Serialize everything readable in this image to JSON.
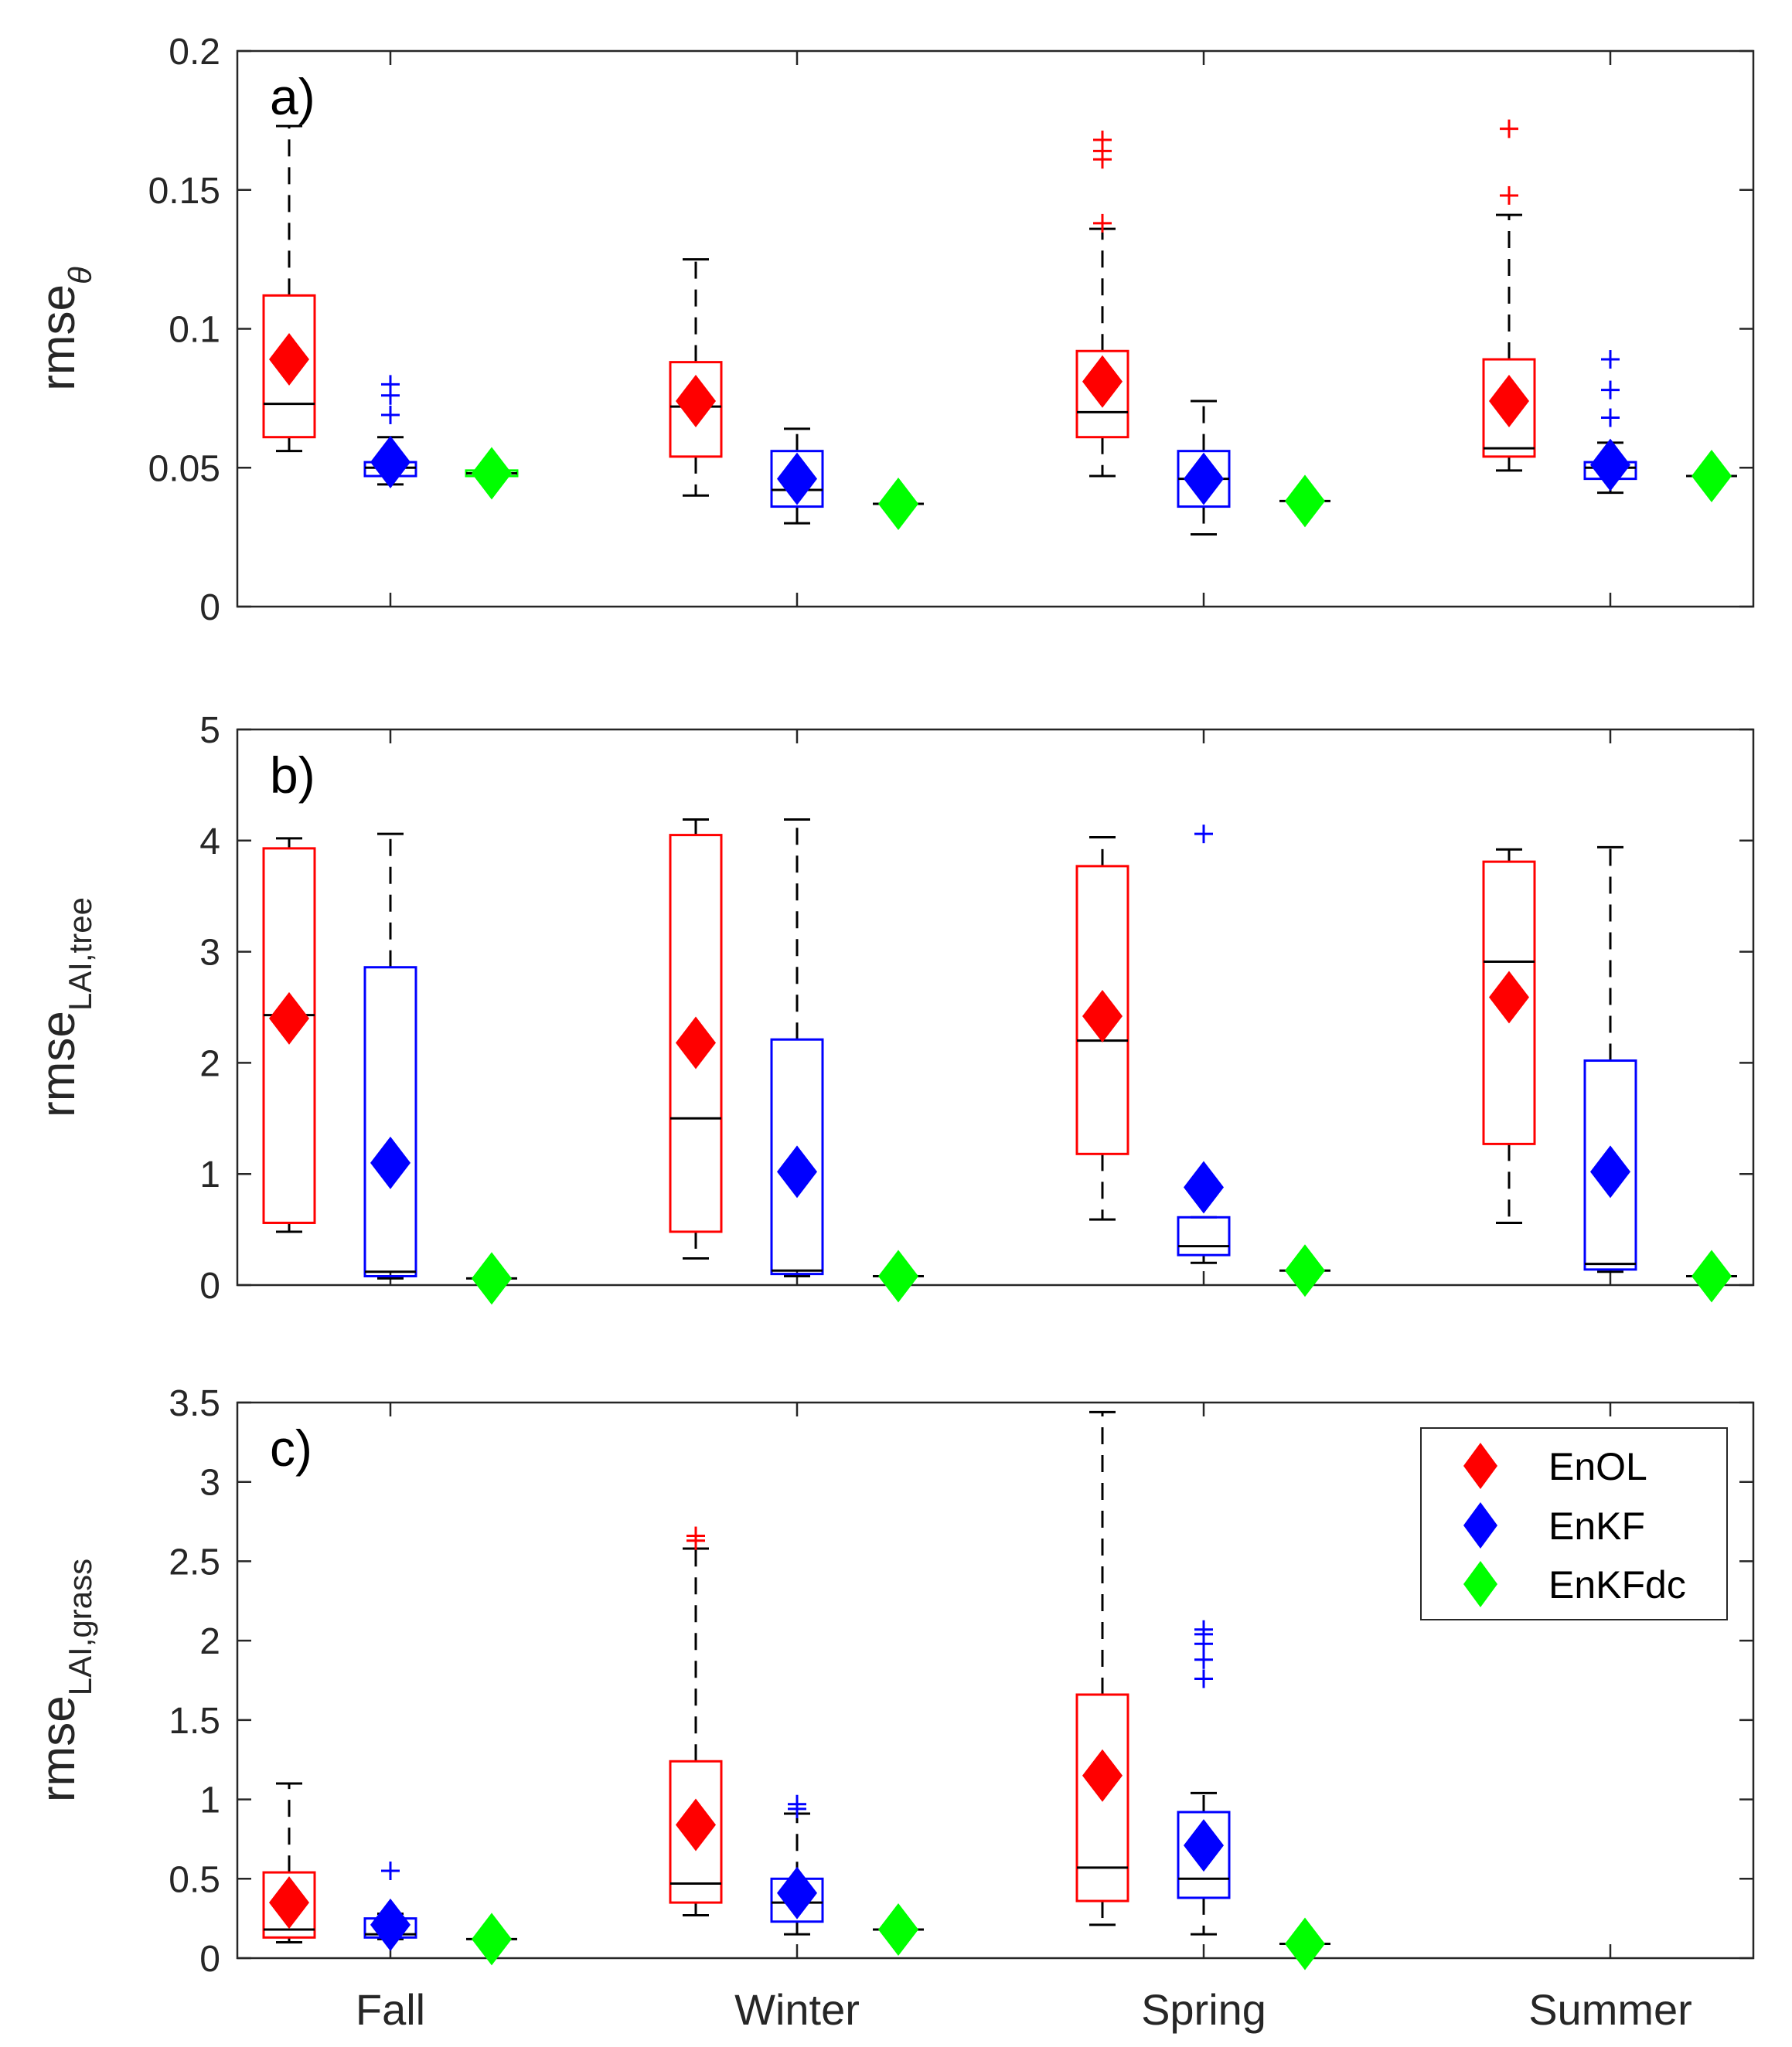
{
  "chart_data": [
    {
      "type": "box",
      "panel_label": "a)",
      "ylabel": {
        "main": "rmse",
        "sub": "θ"
      },
      "ylim": [
        0,
        0.2
      ],
      "yticks": [
        "0",
        "0.05",
        "0.1",
        "0.15",
        "0.2"
      ],
      "categories": [
        "Fall",
        "Winter",
        "Spring",
        "Summer"
      ],
      "series_names": [
        "EnOL",
        "EnKF",
        "EnKFdc"
      ],
      "boxes": [
        [
          {
            "series": "EnOL",
            "lw": 0.056,
            "q1": 0.061,
            "median": 0.073,
            "q3": 0.112,
            "uw": 0.173,
            "mean": 0.089,
            "outliers": []
          },
          {
            "series": "EnKF",
            "lw": 0.044,
            "q1": 0.047,
            "median": 0.05,
            "q3": 0.052,
            "uw": 0.061,
            "mean": 0.052,
            "outliers": [
              0.069,
              0.076,
              0.08
            ]
          },
          {
            "series": "EnKFdc",
            "lw": 0.046,
            "q1": 0.047,
            "median": 0.048,
            "q3": 0.049,
            "uw": 0.05,
            "mean": 0.048,
            "outliers": []
          }
        ],
        [
          {
            "series": "EnOL",
            "lw": 0.04,
            "q1": 0.054,
            "median": 0.072,
            "q3": 0.088,
            "uw": 0.125,
            "mean": 0.074,
            "outliers": []
          },
          {
            "series": "EnKF",
            "lw": 0.03,
            "q1": 0.036,
            "median": 0.042,
            "q3": 0.056,
            "uw": 0.064,
            "mean": 0.046,
            "outliers": []
          },
          {
            "series": "EnKFdc",
            "lw": 0.037,
            "q1": 0.037,
            "median": 0.037,
            "q3": 0.037,
            "uw": 0.037,
            "mean": 0.037,
            "outliers": []
          }
        ],
        [
          {
            "series": "EnOL",
            "lw": 0.047,
            "q1": 0.061,
            "median": 0.07,
            "q3": 0.092,
            "uw": 0.136,
            "mean": 0.081,
            "outliers": [
              0.138,
              0.161,
              0.164,
              0.168
            ]
          },
          {
            "series": "EnKF",
            "lw": 0.026,
            "q1": 0.036,
            "median": 0.046,
            "q3": 0.056,
            "uw": 0.074,
            "mean": 0.046,
            "outliers": []
          },
          {
            "series": "EnKFdc",
            "lw": 0.038,
            "q1": 0.038,
            "median": 0.038,
            "q3": 0.038,
            "uw": 0.038,
            "mean": 0.038,
            "outliers": []
          }
        ],
        [
          {
            "series": "EnOL",
            "lw": 0.049,
            "q1": 0.054,
            "median": 0.057,
            "q3": 0.089,
            "uw": 0.141,
            "mean": 0.074,
            "outliers": [
              0.148,
              0.172
            ]
          },
          {
            "series": "EnKF",
            "lw": 0.041,
            "q1": 0.046,
            "median": 0.05,
            "q3": 0.052,
            "uw": 0.059,
            "mean": 0.051,
            "outliers": [
              0.068,
              0.078,
              0.089
            ]
          },
          {
            "series": "EnKFdc",
            "lw": 0.047,
            "q1": 0.047,
            "median": 0.047,
            "q3": 0.047,
            "uw": 0.047,
            "mean": 0.047,
            "outliers": []
          }
        ]
      ]
    },
    {
      "type": "box",
      "panel_label": "b)",
      "ylabel": {
        "main": "rmse",
        "sub": "LAI,tree"
      },
      "ylim": [
        0,
        5
      ],
      "yticks": [
        "0",
        "1",
        "2",
        "3",
        "4",
        "5"
      ],
      "categories": [
        "Fall",
        "Winter",
        "Spring",
        "Summer"
      ],
      "series_names": [
        "EnOL",
        "EnKF",
        "EnKFdc"
      ],
      "boxes": [
        [
          {
            "series": "EnOL",
            "lw": 0.48,
            "q1": 0.56,
            "median": 2.43,
            "q3": 3.93,
            "uw": 4.02,
            "mean": 2.4,
            "outliers": []
          },
          {
            "series": "EnKF",
            "lw": 0.06,
            "q1": 0.08,
            "median": 0.12,
            "q3": 2.86,
            "uw": 4.06,
            "mean": 1.1,
            "outliers": []
          },
          {
            "series": "EnKFdc",
            "lw": 0.06,
            "q1": 0.06,
            "median": 0.06,
            "q3": 0.06,
            "uw": 0.06,
            "mean": 0.06,
            "outliers": []
          }
        ],
        [
          {
            "series": "EnOL",
            "lw": 0.24,
            "q1": 0.48,
            "median": 1.5,
            "q3": 4.05,
            "uw": 4.19,
            "mean": 2.18,
            "outliers": []
          },
          {
            "series": "EnKF",
            "lw": 0.08,
            "q1": 0.1,
            "median": 0.13,
            "q3": 2.21,
            "uw": 4.19,
            "mean": 1.02,
            "outliers": []
          },
          {
            "series": "EnKFdc",
            "lw": 0.08,
            "q1": 0.08,
            "median": 0.08,
            "q3": 0.08,
            "uw": 0.08,
            "mean": 0.08,
            "outliers": []
          }
        ],
        [
          {
            "series": "EnOL",
            "lw": 0.59,
            "q1": 1.18,
            "median": 2.2,
            "q3": 3.77,
            "uw": 4.03,
            "mean": 2.42,
            "outliers": []
          },
          {
            "series": "EnKF",
            "lw": 0.2,
            "q1": 0.27,
            "median": 0.35,
            "q3": 0.61,
            "uw": 0.61,
            "mean": 0.88,
            "outliers": [
              4.06
            ]
          },
          {
            "series": "EnKFdc",
            "lw": 0.13,
            "q1": 0.13,
            "median": 0.13,
            "q3": 0.13,
            "uw": 0.13,
            "mean": 0.13,
            "outliers": []
          }
        ],
        [
          {
            "series": "EnOL",
            "lw": 0.56,
            "q1": 1.27,
            "median": 2.91,
            "q3": 3.81,
            "uw": 3.92,
            "mean": 2.59,
            "outliers": []
          },
          {
            "series": "EnKF",
            "lw": 0.12,
            "q1": 0.14,
            "median": 0.19,
            "q3": 2.02,
            "uw": 3.94,
            "mean": 1.02,
            "outliers": []
          },
          {
            "series": "EnKFdc",
            "lw": 0.08,
            "q1": 0.08,
            "median": 0.08,
            "q3": 0.08,
            "uw": 0.08,
            "mean": 0.08,
            "outliers": []
          }
        ]
      ]
    },
    {
      "type": "box",
      "panel_label": "c)",
      "ylabel": {
        "main": "rmse",
        "sub": "LAI,grass"
      },
      "ylim": [
        0,
        3.5
      ],
      "yticks": [
        "0",
        "0.5",
        "1",
        "1.5",
        "2",
        "2.5",
        "3",
        "3.5"
      ],
      "categories": [
        "Fall",
        "Winter",
        "Spring",
        "Summer"
      ],
      "series_names": [
        "EnOL",
        "EnKF",
        "EnKFdc"
      ],
      "boxes": [
        [
          {
            "series": "EnOL",
            "lw": 0.1,
            "q1": 0.13,
            "median": 0.18,
            "q3": 0.54,
            "uw": 1.1,
            "mean": 0.35,
            "outliers": []
          },
          {
            "series": "EnKF",
            "lw": 0.12,
            "q1": 0.13,
            "median": 0.15,
            "q3": 0.25,
            "uw": 0.28,
            "mean": 0.21,
            "outliers": [
              0.55
            ]
          },
          {
            "series": "EnKFdc",
            "lw": 0.12,
            "q1": 0.12,
            "median": 0.12,
            "q3": 0.12,
            "uw": 0.12,
            "mean": 0.12,
            "outliers": []
          }
        ],
        [
          {
            "series": "EnOL",
            "lw": 0.27,
            "q1": 0.35,
            "median": 0.47,
            "q3": 1.24,
            "uw": 2.58,
            "mean": 0.84,
            "outliers": [
              2.63,
              2.66
            ]
          },
          {
            "series": "EnKF",
            "lw": 0.15,
            "q1": 0.23,
            "median": 0.35,
            "q3": 0.5,
            "uw": 0.91,
            "mean": 0.41,
            "outliers": [
              0.94,
              0.97
            ]
          },
          {
            "series": "EnKFdc",
            "lw": 0.18,
            "q1": 0.18,
            "median": 0.18,
            "q3": 0.18,
            "uw": 0.18,
            "mean": 0.18,
            "outliers": []
          }
        ],
        [
          {
            "series": "EnOL",
            "lw": 0.21,
            "q1": 0.36,
            "median": 0.57,
            "q3": 1.66,
            "uw": 3.44,
            "mean": 1.15,
            "outliers": []
          },
          {
            "series": "EnKF",
            "lw": 0.15,
            "q1": 0.38,
            "median": 0.5,
            "q3": 0.92,
            "uw": 1.04,
            "mean": 0.71,
            "outliers": [
              1.76,
              1.88,
              1.98,
              2.04,
              2.07
            ]
          },
          {
            "series": "EnKFdc",
            "lw": 0.09,
            "q1": 0.09,
            "median": 0.09,
            "q3": 0.09,
            "uw": 0.09,
            "mean": 0.09,
            "outliers": []
          }
        ],
        [
          {
            "series": "EnOL",
            "lw": null,
            "q1": null,
            "median": null,
            "q3": null,
            "uw": null,
            "mean": null,
            "outliers": []
          },
          {
            "series": "EnKF",
            "lw": null,
            "q1": null,
            "median": null,
            "q3": null,
            "uw": null,
            "mean": null,
            "outliers": []
          },
          {
            "series": "EnKFdc",
            "lw": null,
            "q1": null,
            "median": null,
            "q3": null,
            "uw": null,
            "mean": null,
            "outliers": []
          }
        ]
      ]
    }
  ],
  "legend": {
    "placement": "top-right of panel c",
    "entries": [
      {
        "label": "EnOL",
        "color": "#ff0000"
      },
      {
        "label": "EnKF",
        "color": "#0000ff"
      },
      {
        "label": "EnKFdc",
        "color": "#00ff00"
      }
    ]
  },
  "colors": {
    "EnOL": "#ff0000",
    "EnKF": "#0000ff",
    "EnKFdc": "#00ff00",
    "whisker": "#000000",
    "axis": "#262626"
  }
}
